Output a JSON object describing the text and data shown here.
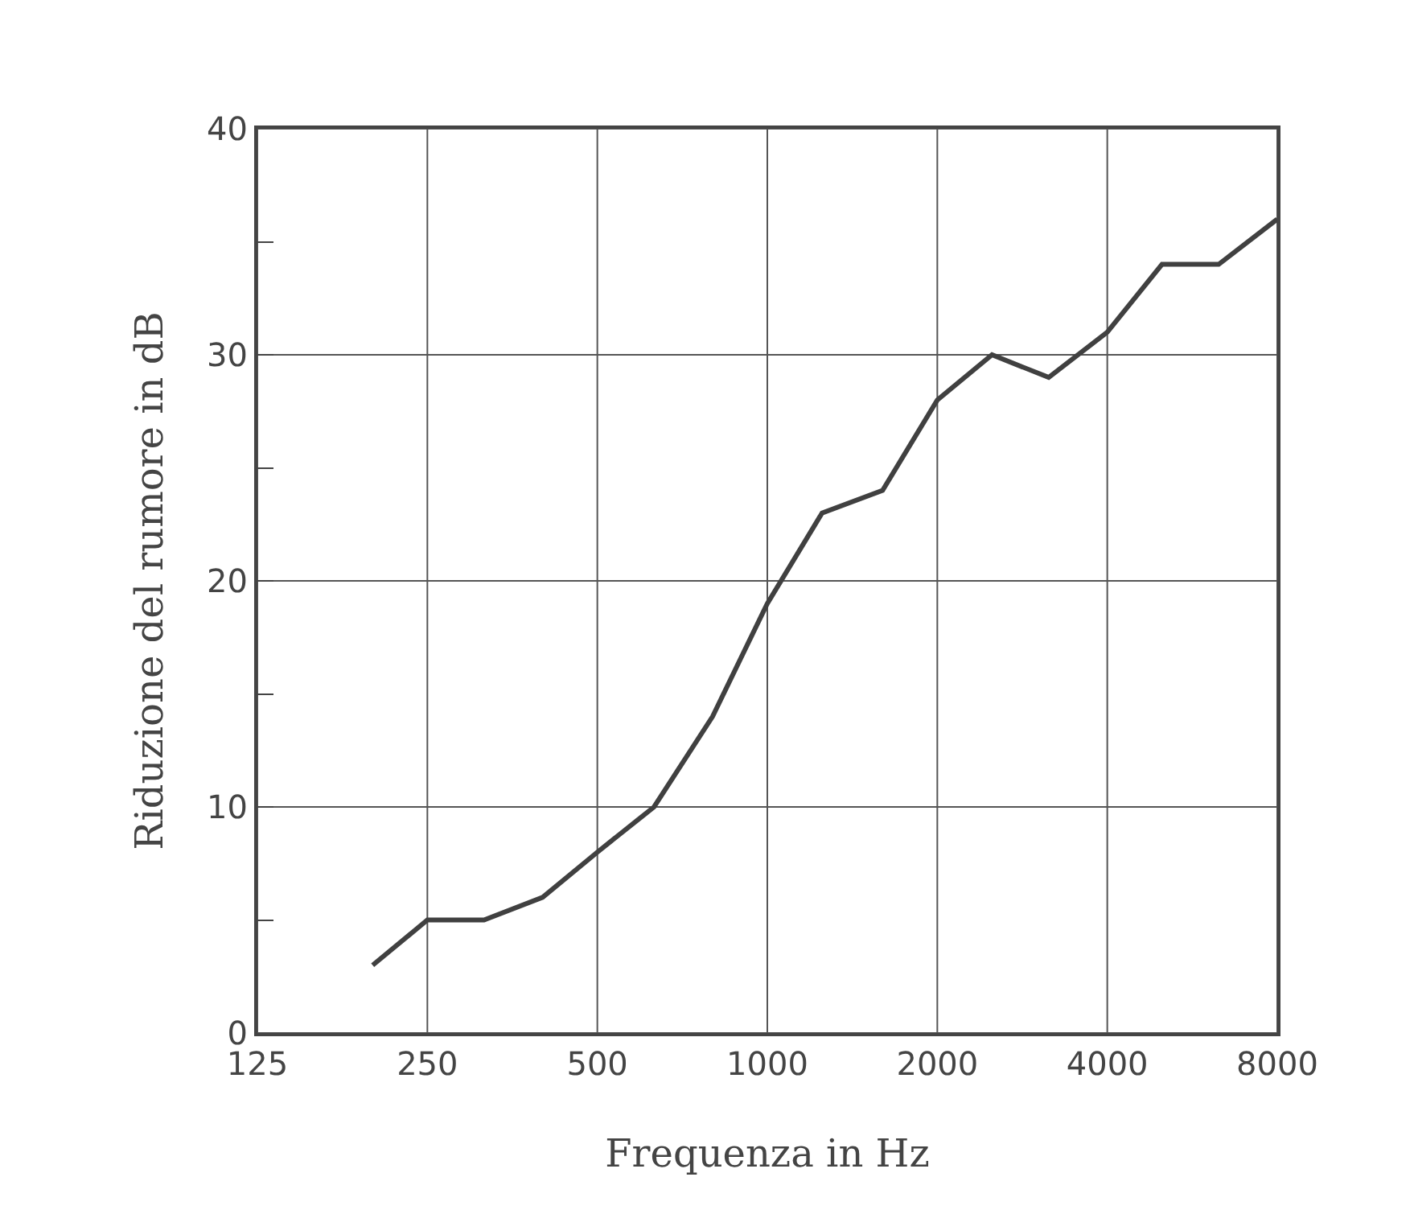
{
  "chart_data": {
    "type": "line",
    "xlabel": "Frequenza in Hz",
    "ylabel": "Riduzione del rumore in dB",
    "x": [
      200,
      250,
      315,
      400,
      500,
      630,
      800,
      1000,
      1250,
      1600,
      2000,
      2500,
      3150,
      4000,
      5000,
      6300,
      8000
    ],
    "series": [
      {
        "color": "#404040",
        "values": [
          3,
          5,
          5,
          6,
          8,
          10,
          14,
          19,
          23,
          24,
          28,
          30,
          29,
          31,
          34,
          34,
          36
        ]
      }
    ],
    "log": "x",
    "xlim": [
      125,
      8000
    ],
    "xticks": [
      125,
      250,
      500,
      1000,
      2000,
      4000,
      8000
    ],
    "ylim": [
      0,
      40
    ],
    "yticks": [
      0,
      {
        "value": 5,
        "label": null
      },
      10,
      {
        "value": 15,
        "label": null
      },
      20,
      {
        "value": 25,
        "label": null
      },
      30,
      {
        "value": 35,
        "label": null
      },
      40
    ],
    "grid": true,
    "legend": false,
    "marker": "none",
    "line_style": "solid"
  }
}
